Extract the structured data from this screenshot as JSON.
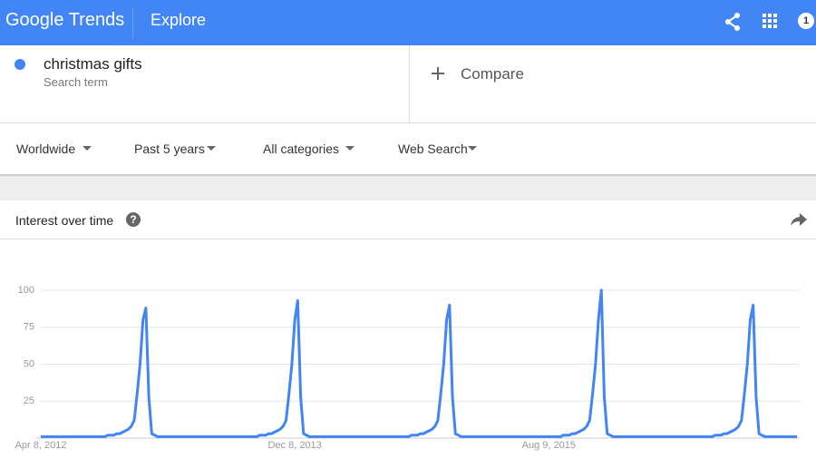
{
  "header": {
    "logo": "Google Trends",
    "section": "Explore",
    "badge": "1"
  },
  "search": {
    "subtitle": "Search term",
    "compare": "Compare"
  },
  "filters": [
    "Worldwide",
    "Past 5 years",
    "All categories",
    "Web Search"
  ],
  "chart_data": {
    "type": "line",
    "title": "Interest over time",
    "categories": [
      "Apr 8, 2012",
      null,
      null,
      null,
      null,
      null,
      null,
      null,
      null,
      null,
      null,
      null,
      null,
      null,
      null,
      null,
      null,
      null,
      null,
      null,
      null,
      null,
      null,
      null,
      null,
      null,
      null,
      null,
      null,
      null,
      null,
      null,
      null,
      null,
      null,
      null,
      null,
      null,
      null,
      null,
      null,
      null,
      null,
      null,
      null,
      null,
      null,
      null,
      null,
      null,
      null,
      null,
      null,
      null,
      null,
      null,
      null,
      null,
      null,
      null,
      null,
      null,
      null,
      null,
      null,
      null,
      null,
      null,
      null,
      null,
      null,
      null,
      null,
      null,
      null,
      null,
      null,
      null,
      null,
      null,
      null,
      null,
      null,
      null,
      null,
      null,
      null,
      "Dec 8, 2013",
      null,
      null,
      null,
      null,
      null,
      null,
      null,
      null,
      null,
      null,
      null,
      null,
      null,
      null,
      null,
      null,
      null,
      null,
      null,
      null,
      null,
      null,
      null,
      null,
      null,
      null,
      null,
      null,
      null,
      null,
      null,
      null,
      null,
      null,
      null,
      null,
      null,
      null,
      null,
      null,
      null,
      null,
      null,
      null,
      null,
      null,
      null,
      null,
      null,
      null,
      null,
      null,
      null,
      null,
      null,
      null,
      null,
      null,
      null,
      null,
      null,
      null,
      null,
      null,
      null,
      null,
      null,
      null,
      null,
      null,
      null,
      null,
      null,
      null,
      null,
      null,
      null,
      null,
      null,
      null,
      null,
      null,
      null,
      null,
      null,
      null,
      "Aug 9, 2015",
      null,
      null,
      null,
      null,
      null,
      null,
      null,
      null,
      null,
      null,
      null,
      null,
      null,
      null,
      null,
      null,
      null,
      null,
      null,
      null,
      null,
      null,
      null,
      null,
      null,
      null,
      null,
      null,
      null,
      null,
      null,
      null,
      null,
      null,
      null,
      null,
      null,
      null,
      null,
      null,
      null,
      null,
      null,
      null,
      null,
      null,
      null,
      null,
      null,
      null,
      null,
      null,
      null,
      null,
      null,
      null,
      null,
      null,
      null,
      null,
      null,
      null,
      null,
      null,
      null,
      null,
      null,
      null,
      null,
      null,
      null,
      null,
      null,
      null,
      null,
      null,
      null,
      null,
      null,
      null,
      null,
      null,
      null,
      null,
      null
    ],
    "series": [
      {
        "name": "christmas gifts",
        "color": "#4285f4",
        "values": [
          1,
          1,
          1,
          1,
          1,
          1,
          1,
          1,
          1,
          1,
          1,
          1,
          1,
          1,
          1,
          1,
          1,
          1,
          1,
          1,
          1,
          1,
          1,
          2,
          2,
          2,
          3,
          3,
          4,
          5,
          6,
          8,
          12,
          30,
          50,
          80,
          88,
          28,
          3,
          2,
          1,
          1,
          1,
          1,
          1,
          1,
          1,
          1,
          1,
          1,
          1,
          1,
          1,
          1,
          1,
          1,
          1,
          1,
          1,
          1,
          1,
          1,
          1,
          1,
          1,
          1,
          1,
          1,
          1,
          1,
          1,
          1,
          1,
          1,
          1,
          2,
          2,
          2,
          3,
          3,
          4,
          5,
          6,
          8,
          12,
          30,
          50,
          80,
          93,
          28,
          3,
          2,
          1,
          1,
          1,
          1,
          1,
          1,
          1,
          1,
          1,
          1,
          1,
          1,
          1,
          1,
          1,
          1,
          1,
          1,
          1,
          1,
          1,
          1,
          1,
          1,
          1,
          1,
          1,
          1,
          1,
          1,
          1,
          1,
          1,
          1,
          1,
          2,
          2,
          2,
          3,
          3,
          4,
          5,
          6,
          8,
          12,
          30,
          50,
          80,
          90,
          28,
          3,
          2,
          1,
          1,
          1,
          1,
          1,
          1,
          1,
          1,
          1,
          1,
          1,
          1,
          1,
          1,
          1,
          1,
          1,
          1,
          1,
          1,
          1,
          1,
          1,
          1,
          1,
          1,
          1,
          1,
          1,
          1,
          1,
          1,
          1,
          1,
          1,
          2,
          2,
          2,
          3,
          3,
          4,
          5,
          6,
          8,
          12,
          30,
          50,
          80,
          100,
          28,
          3,
          2,
          1,
          1,
          1,
          1,
          1,
          1,
          1,
          1,
          1,
          1,
          1,
          1,
          1,
          1,
          1,
          1,
          1,
          1,
          1,
          1,
          1,
          1,
          1,
          1,
          1,
          1,
          1,
          1,
          1,
          1,
          1,
          1,
          1,
          1,
          1,
          2,
          2,
          2,
          3,
          3,
          4,
          5,
          6,
          8,
          12,
          30,
          50,
          80,
          90,
          28,
          3,
          2,
          1,
          1,
          1,
          1,
          1,
          1,
          1,
          1,
          1,
          1,
          1,
          1
        ]
      }
    ],
    "ylim": [
      0,
      100
    ],
    "yticks": [
      25,
      50,
      75,
      100
    ],
    "grid": true
  }
}
